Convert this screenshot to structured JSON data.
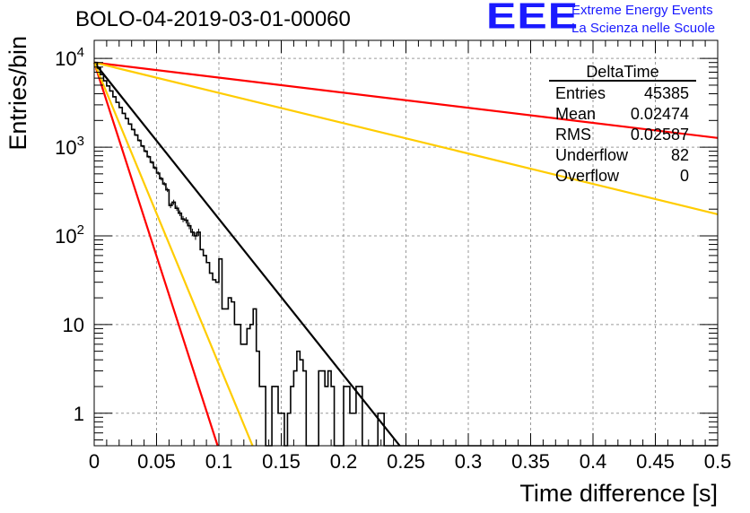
{
  "header": {
    "title": "BOLO-04-2019-03-01-00060",
    "logo_text": "EEE",
    "logo_line1": "Extreme Energy Events",
    "logo_line2": "La Scienza nelle Scuole",
    "logo_color": "#1a1aff"
  },
  "stats_box": {
    "name": "DeltaTime",
    "rows": [
      {
        "label": "Entries",
        "value": "45385"
      },
      {
        "label": "Mean",
        "value": "0.02474"
      },
      {
        "label": "RMS",
        "value": "0.02587"
      },
      {
        "label": "Underflow",
        "value": "82"
      },
      {
        "label": "Overflow",
        "value": "0"
      }
    ]
  },
  "chart_data": {
    "type": "histogram",
    "title": "BOLO-04-2019-03-01-00060",
    "xlabel": "Time difference [s]",
    "ylabel": "Entries/bin",
    "xlim": [
      0,
      0.5
    ],
    "ylim": [
      0.43,
      16000
    ],
    "yscale": "log",
    "grid": true,
    "xticks": [
      "0",
      "0.05",
      "0.1",
      "0.15",
      "0.2",
      "0.25",
      "0.3",
      "0.35",
      "0.4",
      "0.45",
      "0.5"
    ],
    "yticks": [
      {
        "value": 1,
        "label": "1"
      },
      {
        "value": 10,
        "label": "10"
      },
      {
        "value": 100,
        "label": "10^2"
      },
      {
        "value": 1000,
        "label": "10^3"
      },
      {
        "value": 10000,
        "label": "10^4"
      }
    ],
    "histogram": {
      "bin_width": 0.0025,
      "x_start": 0,
      "counts": [
        9000,
        7800,
        6600,
        5600,
        4900,
        4300,
        3700,
        3200,
        2800,
        2400,
        2100,
        1820,
        1580,
        1370,
        1190,
        1030,
        900,
        780,
        675,
        585,
        510,
        442,
        385,
        330,
        220,
        240,
        205,
        180,
        155,
        150,
        130,
        110,
        100,
        110,
        70,
        60,
        50,
        38,
        32,
        30,
        55,
        15,
        15,
        20,
        18,
        10,
        10,
        6,
        6,
        9,
        10,
        15,
        5,
        2,
        2,
        0,
        0,
        2,
        2,
        1,
        1,
        0,
        1,
        2,
        3,
        5,
        4,
        3,
        0,
        0,
        0,
        0,
        3,
        3,
        2,
        3,
        2,
        0,
        0,
        0,
        2,
        2,
        1,
        1,
        2,
        2,
        0,
        0,
        0,
        0,
        0,
        1,
        1,
        0,
        0,
        0,
        0,
        0,
        0,
        0,
        0,
        0,
        0,
        0,
        0,
        0,
        0,
        0,
        0,
        0,
        0,
        0,
        0,
        0,
        0,
        0,
        0,
        0,
        0,
        0,
        0,
        0,
        0,
        0,
        0,
        0,
        0,
        0,
        0,
        0,
        0,
        0,
        0,
        0,
        0,
        0,
        0,
        0,
        0,
        0,
        0,
        0,
        0,
        0,
        0,
        0,
        0,
        0,
        0,
        0,
        0,
        0,
        0,
        0,
        0,
        0,
        0,
        0,
        0,
        0,
        0,
        0,
        0,
        0,
        0,
        0,
        0,
        0,
        0,
        0,
        0,
        0,
        0,
        0,
        0,
        0,
        0,
        0,
        0,
        0,
        0,
        0,
        0,
        0,
        0,
        0,
        0,
        0,
        0,
        0,
        0,
        0,
        0,
        0,
        0,
        0,
        0,
        0,
        0,
        0,
        0,
        0,
        0,
        0,
        0
      ],
      "color": "#000000"
    },
    "curves": [
      {
        "color": "#000000",
        "x": [
          0,
          0.245
        ],
        "y": [
          9000,
          0.43
        ]
      },
      {
        "color": "#ff0000",
        "x": [
          0,
          0.099
        ],
        "y": [
          9000,
          0.43
        ]
      },
      {
        "color": "#ffcc00",
        "x": [
          0,
          0.127
        ],
        "y": [
          9000,
          0.43
        ]
      },
      {
        "color": "#ff0000",
        "x": [
          0,
          0.5
        ],
        "y": [
          9000,
          1270
        ]
      },
      {
        "color": "#ffcc00",
        "x": [
          0,
          0.5
        ],
        "y": [
          9000,
          175
        ]
      }
    ]
  }
}
